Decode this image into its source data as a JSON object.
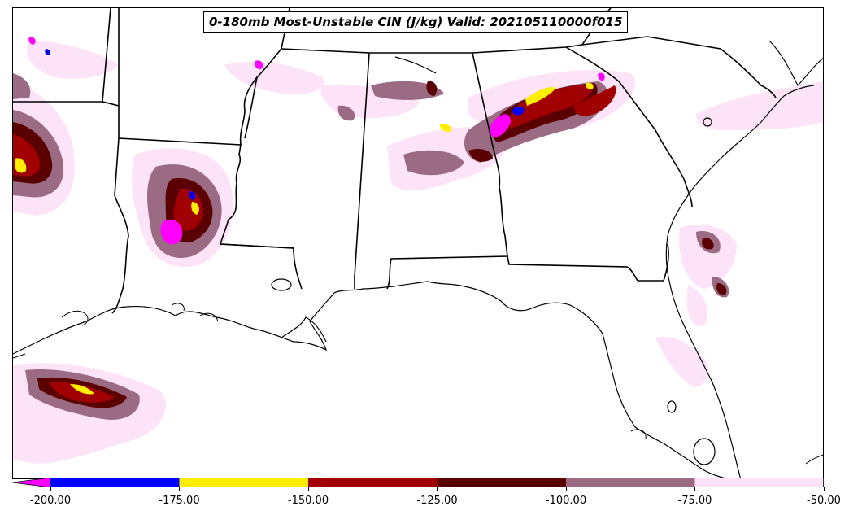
{
  "title": "0-180mb Most-Unstable CIN (J/kg) Valid: 202105110000f015",
  "colorbar": {
    "extend": "min",
    "bins": [
      {
        "from": -200,
        "to": -175,
        "color": "#0000ff"
      },
      {
        "from": -175,
        "to": -150,
        "color": "#ffee00"
      },
      {
        "from": -150,
        "to": -125,
        "color": "#a00000"
      },
      {
        "from": -125,
        "to": -100,
        "color": "#5a0000"
      },
      {
        "from": -100,
        "to": -75,
        "color": "#9b6b84"
      },
      {
        "from": -75,
        "to": -50,
        "color": "#fde3f8"
      }
    ],
    "under_color": "#ff00ff",
    "ticks": [
      "-200.00",
      "-175.00",
      "-150.00",
      "-125.00",
      "-100.00",
      "-75.00",
      "-50.00"
    ]
  },
  "map": {
    "region": "Southeastern United States and Gulf of Mexico",
    "layers": [
      "state-borders",
      "coastlines",
      "cin-shading"
    ]
  }
}
